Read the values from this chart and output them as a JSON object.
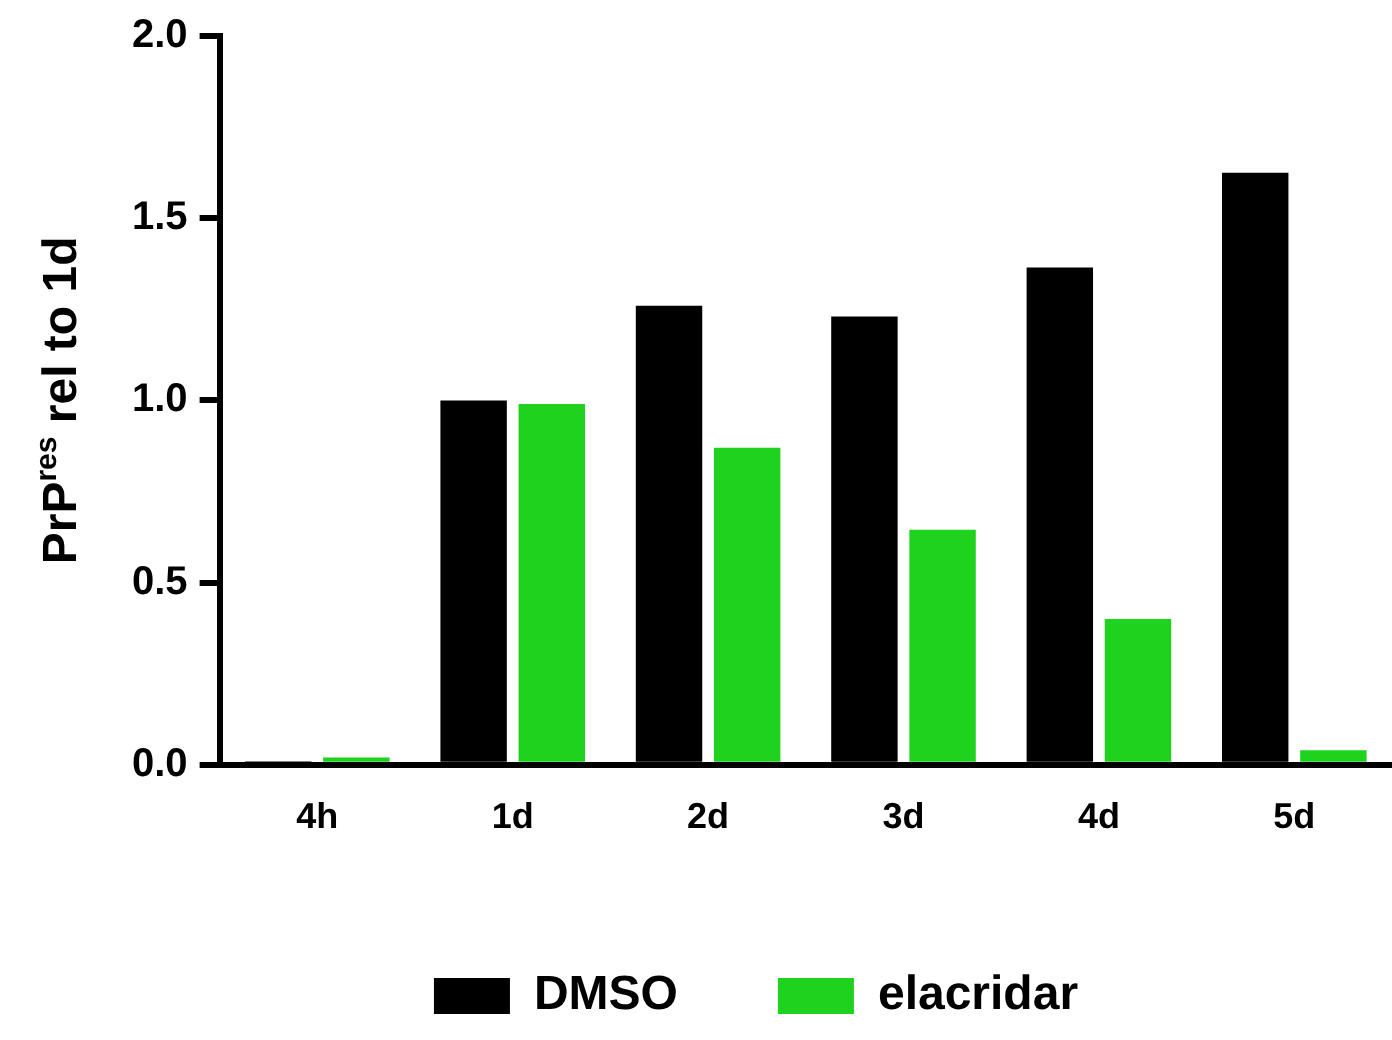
{
  "chart_data": {
    "type": "bar",
    "ylabel": "PrP$^{res}$ rel to 1d",
    "categories": [
      "4h",
      "1d",
      "2d",
      "3d",
      "4d",
      "5d"
    ],
    "series": [
      {
        "name": "DMSO",
        "color": "#000000",
        "values": [
          0.01,
          1.0,
          1.26,
          1.23,
          1.365,
          1.625
        ]
      },
      {
        "name": "elacridar",
        "color": "#1ed21e",
        "values": [
          0.02,
          0.99,
          0.87,
          0.645,
          0.4,
          0.04
        ]
      }
    ],
    "ylim": [
      0,
      2.0
    ],
    "yticks": [
      {
        "value": 0,
        "label": "0.0"
      },
      {
        "value": 0.5,
        "label": "0.5"
      },
      {
        "value": 1,
        "label": "1.0"
      },
      {
        "value": 1.5,
        "label": "1.5"
      },
      {
        "value": 2,
        "label": "2.0"
      }
    ],
    "grid": false,
    "legend": "bottom"
  }
}
